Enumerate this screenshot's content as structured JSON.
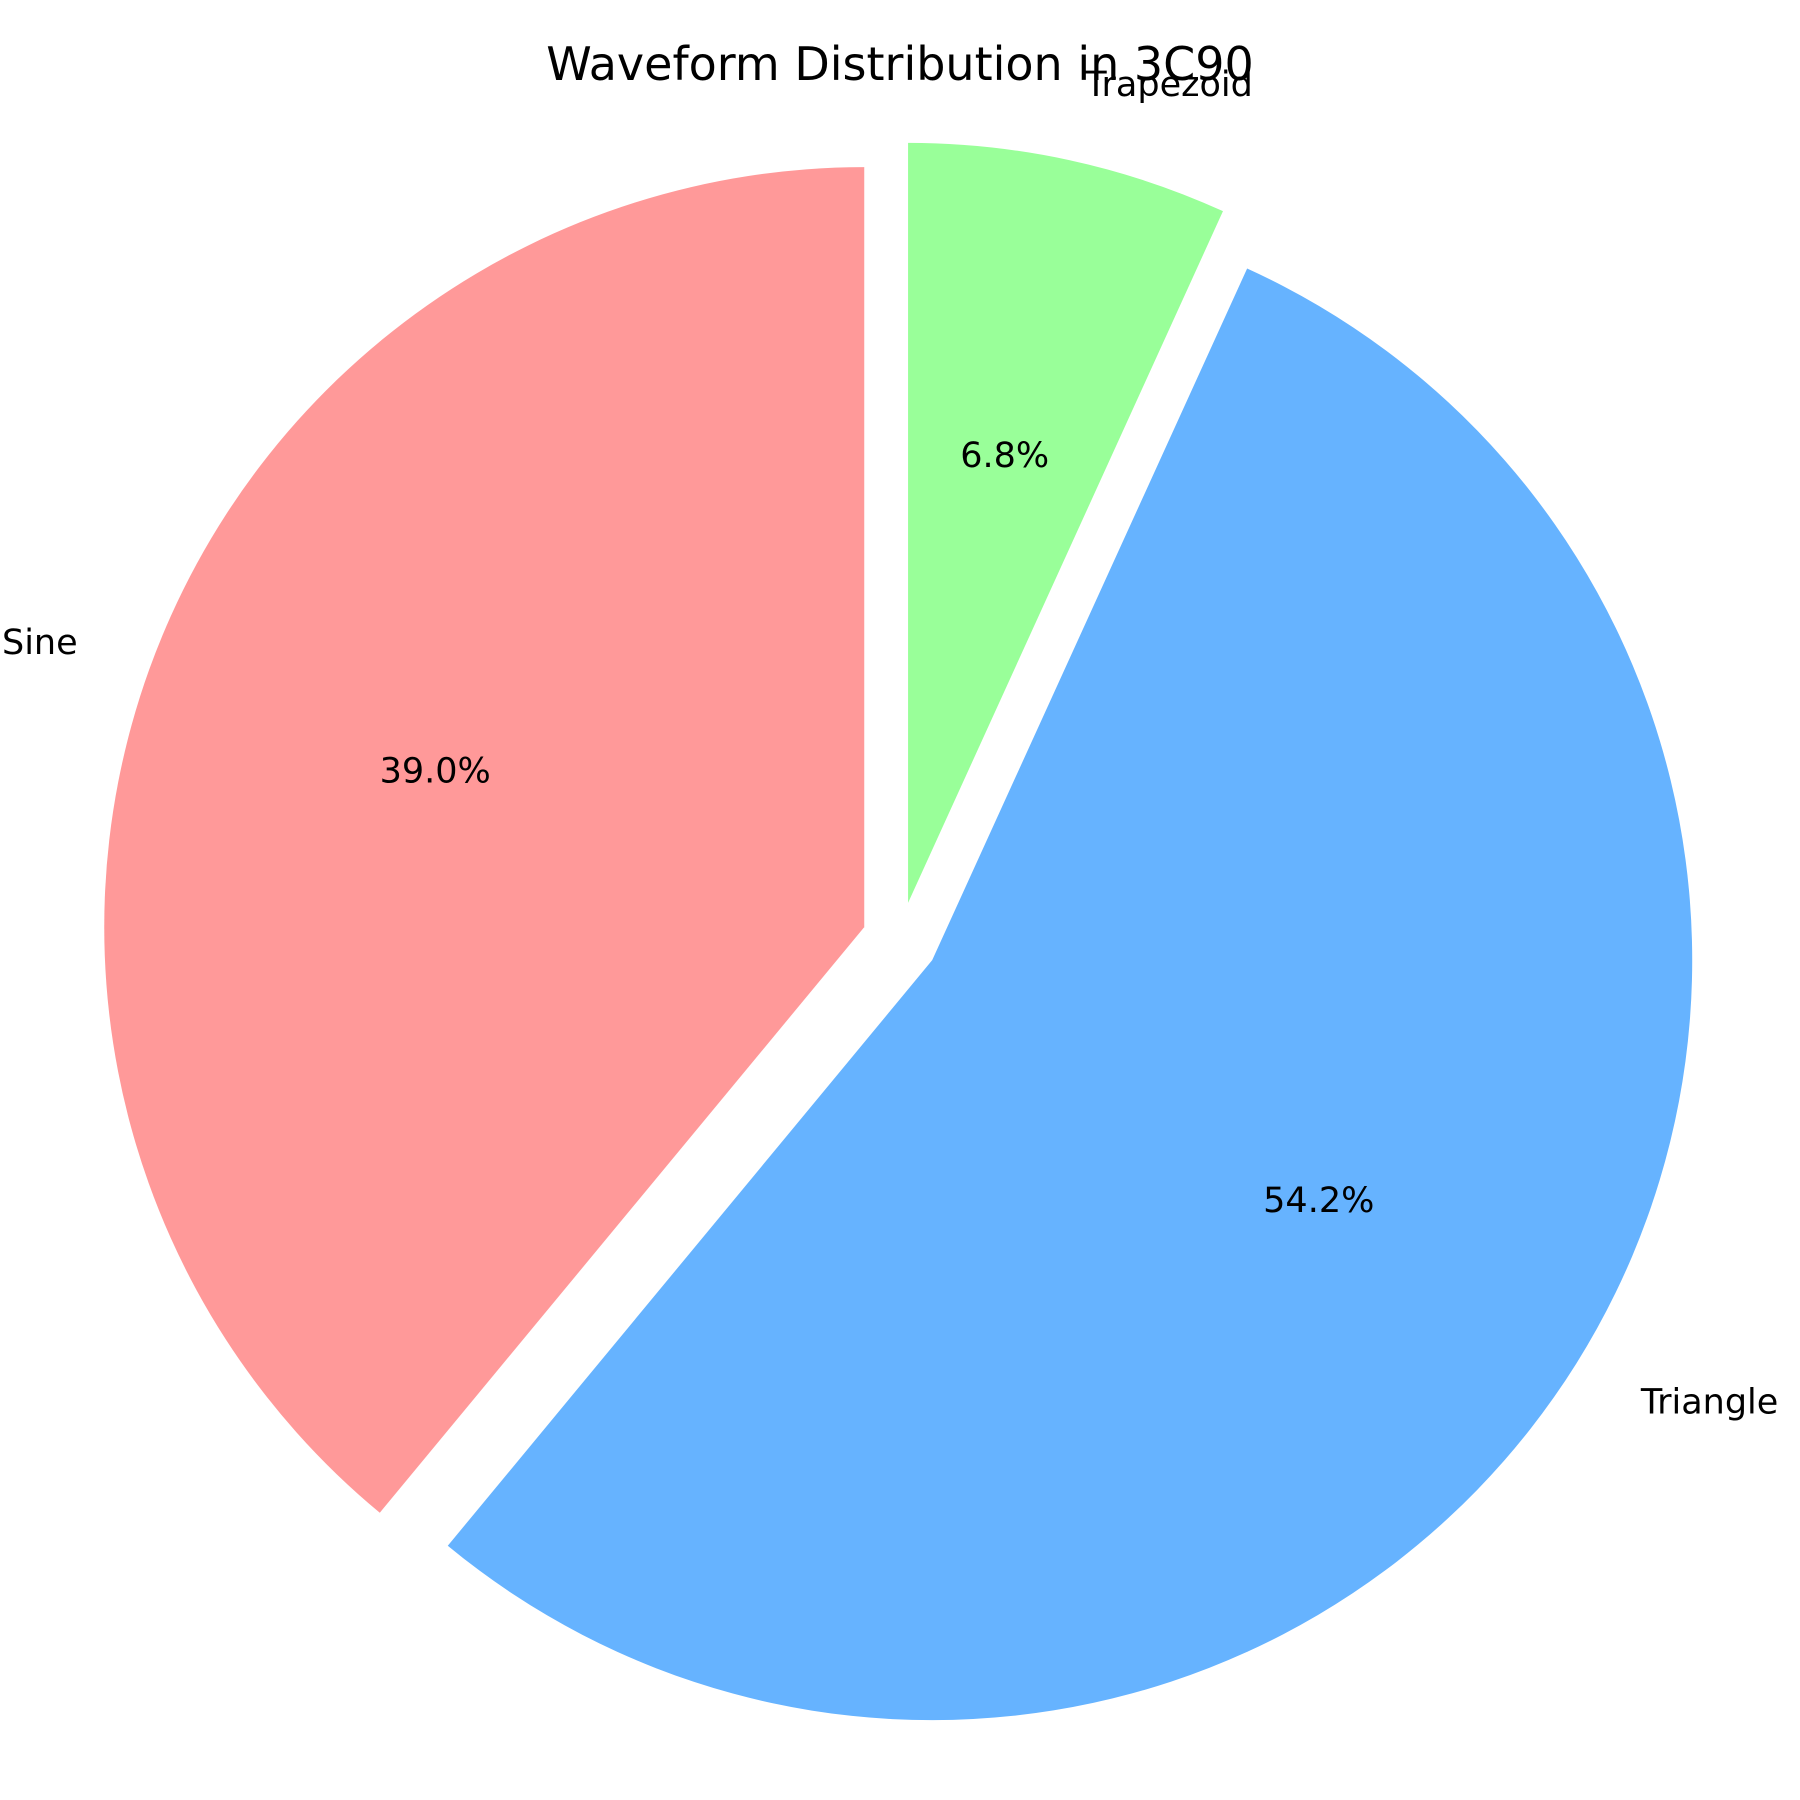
{
  "chart_data": {
    "type": "pie",
    "title": "Waveform Distribution in 3C90",
    "slices": [
      {
        "label": "Sine",
        "value": 39.0,
        "pct_label": "39.0%",
        "color": "#ff9999",
        "exploded": true
      },
      {
        "label": "Triangle",
        "value": 54.2,
        "pct_label": "54.2%",
        "color": "#66b3ff",
        "exploded": true
      },
      {
        "label": "Trapezoid",
        "value": 6.8,
        "pct_label": "6.8%",
        "color": "#99ff99",
        "exploded": true
      }
    ],
    "start_angle": "top",
    "direction": "counterclockwise",
    "legend": "none"
  }
}
